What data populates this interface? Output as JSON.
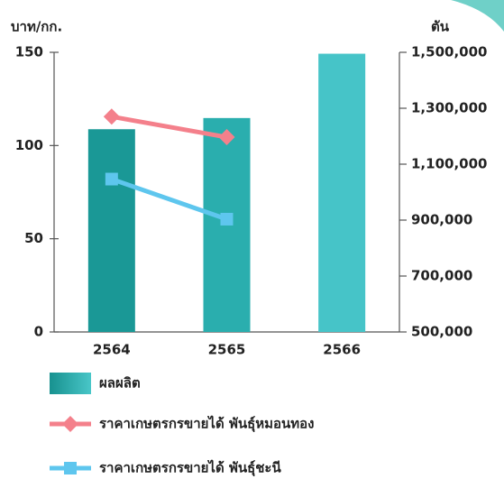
{
  "chart_data": {
    "type": "bar-line",
    "y_label": "บาท/กก.",
    "y2_label": "ตัน",
    "categories": [
      "2564",
      "2565",
      "2566"
    ],
    "ylim": [
      0,
      150
    ],
    "yticks": [
      0,
      50,
      100,
      150
    ],
    "y2lim": [
      500000,
      1500000
    ],
    "y2ticks": [
      {
        "value": 500000,
        "label": "500,000"
      },
      {
        "value": 700000,
        "label": "700,000"
      },
      {
        "value": 900000,
        "label": "900,000"
      },
      {
        "value": 1100000,
        "label": "1,100,000"
      },
      {
        "value": 1300000,
        "label": "1,300,000"
      },
      {
        "value": 1500000,
        "label": "1,500,000"
      }
    ],
    "series": [
      {
        "name": "ผลผลิต",
        "type": "bar",
        "axis": "y2",
        "color": "#23a6a4",
        "colors": [
          "#1a9896",
          "#2aaeae",
          "#46c4c8"
        ],
        "values": [
          1225000,
          1265000,
          1495000
        ]
      },
      {
        "name": "ราคาเกษตรกรขายได้ พันธุ์หมอนทอง",
        "type": "line",
        "marker": "diamond",
        "color": "#f4808b",
        "values": [
          115.5,
          104.5,
          null
        ]
      },
      {
        "name": "ราคาเกษตรกรขายได้ พันธุ์ชะนี",
        "type": "line",
        "marker": "square",
        "color": "#5ec6ee",
        "values": [
          82,
          60.5,
          null
        ]
      }
    ]
  }
}
